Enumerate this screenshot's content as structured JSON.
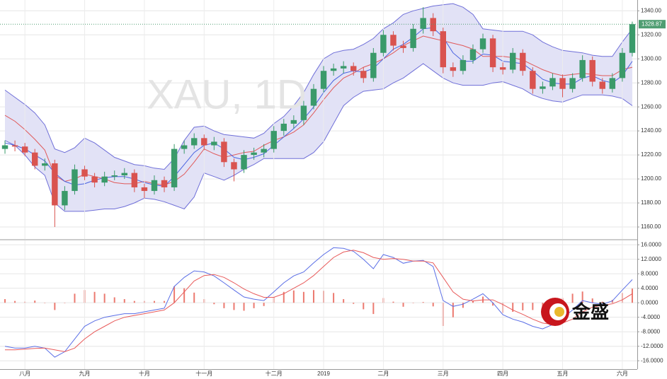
{
  "logo": "金盛",
  "chart_data": [
    {
      "type": "candlestick",
      "watermark": "XAU, 1D",
      "ohlc": [
        [
          1225,
          1232,
          1221,
          1228
        ],
        [
          1228,
          1232,
          1223,
          1227
        ],
        [
          1227,
          1230,
          1219,
          1222
        ],
        [
          1222,
          1225,
          1208,
          1211
        ],
        [
          1211,
          1217,
          1207,
          1213
        ],
        [
          1213,
          1216,
          1160,
          1178
        ],
        [
          1178,
          1194,
          1174,
          1190
        ],
        [
          1190,
          1212,
          1187,
          1208
        ],
        [
          1208,
          1211,
          1199,
          1202
        ],
        [
          1202,
          1205,
          1193,
          1197
        ],
        [
          1197,
          1206,
          1194,
          1202
        ],
        [
          1202,
          1207,
          1199,
          1203
        ],
        [
          1203,
          1209,
          1200,
          1205
        ],
        [
          1205,
          1208,
          1189,
          1193
        ],
        [
          1193,
          1196,
          1184,
          1190
        ],
        [
          1190,
          1203,
          1187,
          1199
        ],
        [
          1199,
          1202,
          1189,
          1193
        ],
        [
          1193,
          1229,
          1190,
          1225
        ],
        [
          1225,
          1232,
          1221,
          1228
        ],
        [
          1228,
          1238,
          1225,
          1234
        ],
        [
          1234,
          1237,
          1224,
          1228
        ],
        [
          1228,
          1235,
          1224,
          1231
        ],
        [
          1231,
          1234,
          1210,
          1214
        ],
        [
          1214,
          1217,
          1198,
          1208
        ],
        [
          1208,
          1224,
          1205,
          1220
        ],
        [
          1220,
          1226,
          1216,
          1222
        ],
        [
          1222,
          1229,
          1218,
          1225
        ],
        [
          1225,
          1244,
          1222,
          1240
        ],
        [
          1240,
          1250,
          1236,
          1246
        ],
        [
          1246,
          1253,
          1242,
          1249
        ],
        [
          1249,
          1265,
          1245,
          1261
        ],
        [
          1261,
          1279,
          1258,
          1275
        ],
        [
          1275,
          1294,
          1272,
          1290
        ],
        [
          1290,
          1296,
          1286,
          1292
        ],
        [
          1292,
          1298,
          1288,
          1294
        ],
        [
          1294,
          1297,
          1286,
          1290
        ],
        [
          1290,
          1293,
          1280,
          1284
        ],
        [
          1284,
          1309,
          1281,
          1305
        ],
        [
          1305,
          1324,
          1302,
          1320
        ],
        [
          1320,
          1323,
          1307,
          1311
        ],
        [
          1311,
          1315,
          1305,
          1309
        ],
        [
          1309,
          1329,
          1306,
          1325
        ],
        [
          1325,
          1343,
          1321,
          1334
        ],
        [
          1334,
          1338,
          1319,
          1323
        ],
        [
          1323,
          1326,
          1288,
          1293
        ],
        [
          1293,
          1297,
          1285,
          1290
        ],
        [
          1290,
          1303,
          1287,
          1299
        ],
        [
          1299,
          1312,
          1296,
          1308
        ],
        [
          1308,
          1321,
          1305,
          1317
        ],
        [
          1317,
          1320,
          1289,
          1293
        ],
        [
          1293,
          1297,
          1287,
          1291
        ],
        [
          1291,
          1309,
          1288,
          1305
        ],
        [
          1305,
          1308,
          1286,
          1290
        ],
        [
          1290,
          1293,
          1271,
          1275
        ],
        [
          1275,
          1281,
          1271,
          1277
        ],
        [
          1277,
          1288,
          1274,
          1284
        ],
        [
          1284,
          1287,
          1268,
          1275
        ],
        [
          1275,
          1288,
          1272,
          1284
        ],
        [
          1284,
          1303,
          1281,
          1299
        ],
        [
          1299,
          1302,
          1277,
          1281
        ],
        [
          1281,
          1284,
          1271,
          1275
        ],
        [
          1275,
          1288,
          1272,
          1284
        ],
        [
          1284,
          1309,
          1281,
          1305
        ],
        [
          1305,
          1331,
          1302,
          1328.87
        ]
      ],
      "up_color": "#3a9a6a",
      "down_color": "#d9534f",
      "series": [
        {
          "color": "#6f6fd8",
          "values": [
            1274,
            1268,
            1262,
            1255,
            1245,
            1225,
            1222,
            1226,
            1234,
            1230,
            1224,
            1218,
            1215,
            1212,
            1211,
            1209,
            1208,
            1217,
            1232,
            1243,
            1244,
            1240,
            1237,
            1236,
            1235,
            1234,
            1238,
            1246,
            1252,
            1261,
            1272,
            1287,
            1300,
            1305,
            1307,
            1308,
            1312,
            1317,
            1325,
            1330,
            1337,
            1340,
            1342,
            1344,
            1345,
            1346,
            1343,
            1337,
            1325,
            1324,
            1323,
            1323,
            1323,
            1320,
            1314,
            1310,
            1307,
            1306,
            1305,
            1303,
            1302,
            1302,
            1314,
            1325
          ]
        },
        {
          "color": "#6f6fd8",
          "values": [
            1232,
            1228,
            1220,
            1210,
            1203,
            1180,
            1173,
            1173,
            1173,
            1174,
            1175,
            1175,
            1177,
            1180,
            1184,
            1183,
            1181,
            1178,
            1175,
            1185,
            1205,
            1202,
            1199,
            1203,
            1208,
            1212,
            1217,
            1217,
            1217,
            1217,
            1217,
            1222,
            1231,
            1246,
            1261,
            1268,
            1273,
            1274,
            1275,
            1280,
            1284,
            1290,
            1296,
            1290,
            1284,
            1280,
            1278,
            1278,
            1278,
            1280,
            1281,
            1278,
            1275,
            1270,
            1267,
            1265,
            1264,
            1267,
            1270,
            1270,
            1270,
            1269,
            1267,
            1261
          ]
        },
        {
          "color": "#e05a5a",
          "values": [
            1253,
            1248,
            1241,
            1233,
            1224,
            1203,
            1198,
            1200,
            1204,
            1202,
            1200,
            1197,
            1196,
            1196,
            1198,
            1196,
            1195,
            1198,
            1204,
            1214,
            1225,
            1221,
            1218,
            1220,
            1222,
            1223,
            1228,
            1232,
            1235,
            1239,
            1245,
            1255,
            1266,
            1276,
            1284,
            1288,
            1293,
            1296,
            1300,
            1305,
            1311,
            1315,
            1319,
            1317,
            1315,
            1313,
            1311,
            1308,
            1302,
            1302,
            1302,
            1301,
            1299,
            1295,
            1291,
            1288,
            1286,
            1287,
            1288,
            1287,
            1286,
            1286,
            1291,
            1293
          ]
        },
        {
          "color": "#4a64e0",
          "values": [
            1230,
            1228,
            1225,
            1220,
            1215,
            1205,
            1198,
            1195,
            1196,
            1199,
            1201,
            1202,
            1202,
            1200,
            1197,
            1195,
            1194,
            1202,
            1212,
            1222,
            1228,
            1230,
            1225,
            1218,
            1216,
            1218,
            1221,
            1228,
            1235,
            1242,
            1250,
            1260,
            1272,
            1282,
            1288,
            1290,
            1289,
            1292,
            1300,
            1308,
            1312,
            1318,
            1325,
            1326,
            1318,
            1305,
            1298,
            1298,
            1304,
            1303,
            1298,
            1297,
            1296,
            1290,
            1283,
            1280,
            1279,
            1279,
            1284,
            1286,
            1282,
            1280,
            1286,
            1298
          ]
        }
      ],
      "band_fill": "#e2e2f6",
      "ylim": [
        1150,
        1349
      ],
      "yticks": [
        {
          "value": 1160,
          "label": "1160.00"
        },
        {
          "value": 1180,
          "label": "1180.00"
        },
        {
          "value": 1200,
          "label": "1200.00"
        },
        {
          "value": 1220,
          "label": "1220.00"
        },
        {
          "value": 1240,
          "label": "1240.00"
        },
        {
          "value": 1260,
          "label": "1260.00"
        },
        {
          "value": 1280,
          "label": "1280.00"
        },
        {
          "value": 1300,
          "label": "1300.00"
        },
        {
          "value": 1320,
          "label": "1320.00"
        },
        {
          "value": 1340,
          "label": "1340.00"
        }
      ],
      "grid": true,
      "last_price": {
        "value": 1328.87,
        "label": "1328.87"
      },
      "last_price_color": "#4f9e72"
    },
    {
      "type": "macd",
      "categories": [
        null,
        null,
        "八月",
        null,
        null,
        null,
        null,
        null,
        "九月",
        null,
        null,
        null,
        null,
        null,
        "十月",
        null,
        null,
        null,
        null,
        null,
        "十一月",
        null,
        null,
        null,
        null,
        null,
        null,
        "十二月",
        null,
        null,
        null,
        null,
        "2019",
        null,
        null,
        null,
        null,
        null,
        "二月",
        null,
        null,
        null,
        null,
        null,
        "三月",
        null,
        null,
        null,
        null,
        null,
        "四月",
        null,
        null,
        null,
        null,
        null,
        "五月",
        null,
        null,
        null,
        null,
        null,
        "六月",
        null
      ],
      "series": [
        {
          "color": "#5a6ee6",
          "values": [
            -12,
            -12.5,
            -12.5,
            -12,
            -12.5,
            -15,
            -13.5,
            -10,
            -6.5,
            -5,
            -4,
            -3.5,
            -3,
            -3,
            -2.5,
            -2,
            -1.5,
            4.5,
            7,
            8.8,
            8.5,
            7.4,
            5.5,
            3.5,
            1.6,
            1,
            0.6,
            3,
            5.5,
            7.4,
            8.5,
            11,
            13.3,
            15.2,
            15,
            14.2,
            12,
            9.4,
            13.3,
            12.5,
            10.9,
            11.5,
            11.7,
            10,
            0.6,
            -1,
            -0.4,
            1,
            2.5,
            0,
            -3.3,
            -4.5,
            -5.3,
            -6.5,
            -7.2,
            -6,
            -4.3,
            -2,
            0.6,
            0,
            -0.4,
            0.5,
            3.5,
            6.4
          ]
        },
        {
          "color": "#e85a5a",
          "values": [
            -13,
            -13,
            -12.8,
            -12.6,
            -12.5,
            -13,
            -13.5,
            -12.5,
            -10,
            -8,
            -6.5,
            -5,
            -4,
            -3.5,
            -3,
            -2.5,
            -2,
            0,
            3,
            6,
            7.5,
            7.8,
            7,
            5.5,
            3.8,
            2.5,
            1.5,
            1.5,
            2.5,
            4,
            5.5,
            7.5,
            10,
            12.5,
            14,
            14.5,
            13.8,
            12.5,
            12,
            12.2,
            12,
            11.5,
            11.5,
            11,
            7,
            3,
            1,
            0.5,
            0.8,
            0.8,
            -0.5,
            -2,
            -3.2,
            -4.5,
            -5.6,
            -6,
            -5.6,
            -4.5,
            -2.5,
            -1.2,
            -0.7,
            -0.3,
            0.8,
            2.5
          ]
        }
      ],
      "histogram": {
        "color": "#ec7a70",
        "values": [
          1,
          0.5,
          0.3,
          0.6,
          0,
          -2,
          0,
          2.5,
          3.5,
          3,
          2.5,
          1.5,
          1,
          0.5,
          0.5,
          0.5,
          0.5,
          4.5,
          4,
          2.8,
          1,
          -0.4,
          -1.5,
          -2,
          -2.2,
          -1.5,
          -0.9,
          1.5,
          3,
          3.4,
          3,
          3.5,
          3.3,
          2.7,
          1,
          -0.3,
          -1.8,
          -3.1,
          1.3,
          0.3,
          -1.1,
          0,
          0.2,
          -1,
          -6.4,
          -4,
          -1.4,
          0.5,
          1.7,
          -0.8,
          -2.8,
          -2.5,
          -2.1,
          -2,
          -1.6,
          0,
          1.3,
          2.5,
          3.1,
          1.2,
          0.3,
          0.8,
          2.7,
          3.9
        ]
      },
      "ylim": [
        -18.3,
        17.2
      ],
      "yticks": [
        {
          "value": 16,
          "label": "16.0000"
        },
        {
          "value": 12,
          "label": "12.0000"
        },
        {
          "value": 8,
          "label": "8.0000"
        },
        {
          "value": 4,
          "label": "4.0000"
        },
        {
          "value": 0,
          "label": "0.0000"
        },
        {
          "value": -4,
          "label": "-4.0000"
        },
        {
          "value": -8,
          "label": "-8.0000"
        },
        {
          "value": -12,
          "label": "-12.0000"
        },
        {
          "value": -16,
          "label": "-16.0000"
        }
      ],
      "grid": true
    }
  ]
}
